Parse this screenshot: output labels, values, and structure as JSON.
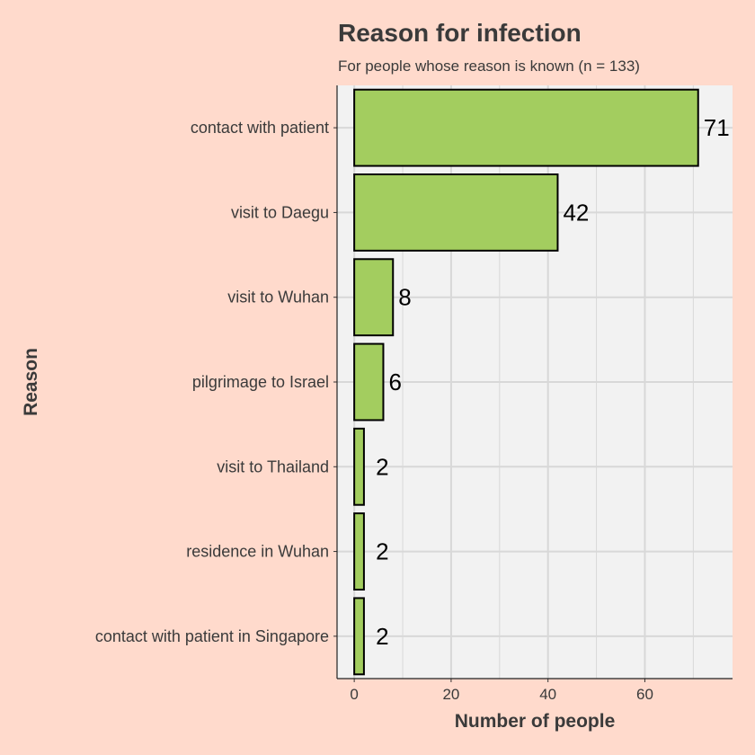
{
  "chart_data": {
    "type": "bar",
    "orientation": "horizontal",
    "title": "Reason for infection",
    "subtitle": "For people whose reason is known (n = 133)",
    "xlabel": "Number of people",
    "ylabel": "Reason",
    "categories": [
      "contact with patient",
      "visit to Daegu",
      "visit to Wuhan",
      "pilgrimage to Israel",
      "visit to Thailand",
      "residence in Wuhan",
      "contact with patient in Singapore"
    ],
    "values": [
      71,
      42,
      8,
      6,
      2,
      2,
      2
    ],
    "xlim": [
      -3.55,
      78.1
    ],
    "xticks": [
      0,
      20,
      40,
      60
    ],
    "grid": true,
    "legend": "none",
    "colors": {
      "page_background": "#FFDACC",
      "panel_background": "#F2F2F2",
      "grid": "#D8D8D8",
      "bar_fill": "#A3CD5F",
      "bar_outline": "#000000",
      "text": "#3A3A3A",
      "value_label": "#000000"
    }
  }
}
